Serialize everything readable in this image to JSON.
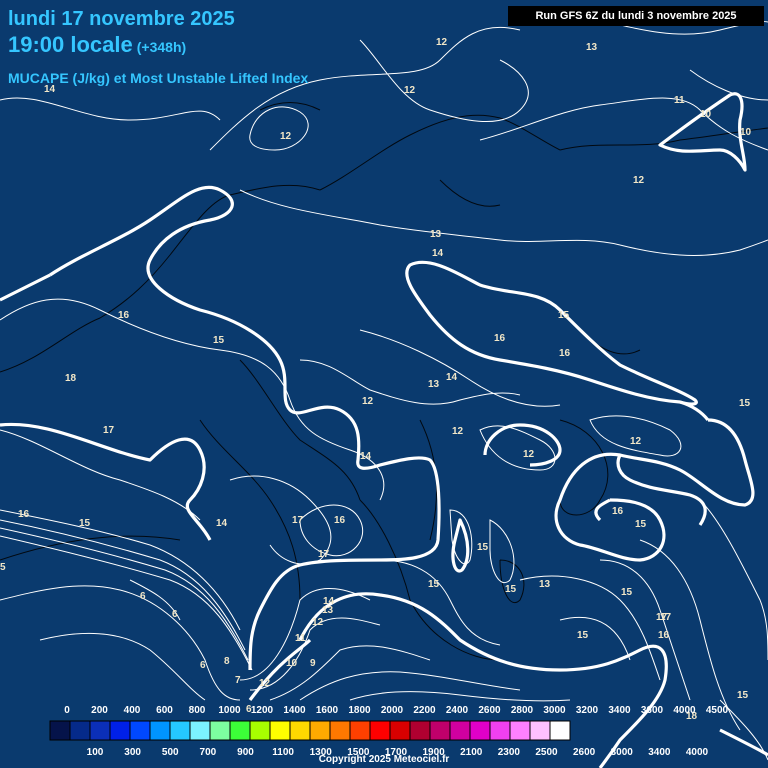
{
  "header": {
    "date": "lundi 17 novembre 2025",
    "time": "19:00 locale",
    "offset": "(+348h)",
    "parameter": "MUCAPE (J/kg) et Most Unstable Lifted Index",
    "run": "Run GFS 6Z du lundi 3 novembre 2025"
  },
  "legend": {
    "top_labels": [
      "0",
      "200",
      "400",
      "600",
      "800",
      "1000",
      "1200",
      "1400",
      "1600",
      "1800",
      "2000",
      "2200",
      "2400",
      "2600",
      "2800",
      "3000",
      "3200",
      "3400",
      "3600",
      "4000",
      "4500"
    ],
    "bottom_labels": [
      "100",
      "300",
      "500",
      "700",
      "900",
      "1100",
      "1300",
      "1500",
      "1700",
      "1900",
      "2100",
      "2300",
      "2500",
      "2600",
      "3000",
      "3400",
      "4000"
    ],
    "colors": [
      "#05134a",
      "#052a8a",
      "#0b2fb8",
      "#0020e8",
      "#0048ff",
      "#0094ff",
      "#25c8ff",
      "#7cf3ff",
      "#7dffa0",
      "#3cff38",
      "#a8ff00",
      "#ffff00",
      "#ffd800",
      "#ffaa00",
      "#ff7800",
      "#ff4000",
      "#ff0000",
      "#d80000",
      "#b00030",
      "#c0006a",
      "#d000a0",
      "#e000c8",
      "#f040f0",
      "#ff80ff",
      "#ffc0ff",
      "#ffffff"
    ]
  },
  "contour_labels": [
    {
      "v": "12"
    },
    {
      "v": "13"
    },
    {
      "v": "11"
    },
    {
      "v": "10"
    },
    {
      "v": "10"
    },
    {
      "v": "14"
    },
    {
      "v": "12"
    },
    {
      "v": "12"
    },
    {
      "v": "12"
    },
    {
      "v": "13"
    },
    {
      "v": "14"
    },
    {
      "v": "16"
    },
    {
      "v": "15"
    },
    {
      "v": "16"
    },
    {
      "v": "16"
    },
    {
      "v": "15"
    },
    {
      "v": "18"
    },
    {
      "v": "13"
    },
    {
      "v": "14"
    },
    {
      "v": "12"
    },
    {
      "v": "17"
    },
    {
      "v": "12"
    },
    {
      "v": "12"
    },
    {
      "v": "12"
    },
    {
      "v": "15"
    },
    {
      "v": "14"
    },
    {
      "v": "16"
    },
    {
      "v": "15"
    },
    {
      "v": "14"
    },
    {
      "v": "17"
    },
    {
      "v": "16"
    },
    {
      "v": "16"
    },
    {
      "v": "15"
    },
    {
      "v": "15"
    },
    {
      "v": "17"
    },
    {
      "v": "15"
    },
    {
      "v": "15"
    },
    {
      "v": "13"
    },
    {
      "v": "15"
    },
    {
      "v": "17"
    },
    {
      "v": "14"
    },
    {
      "v": "13"
    },
    {
      "v": "12"
    },
    {
      "v": "15"
    },
    {
      "v": "16"
    },
    {
      "v": "11"
    },
    {
      "v": "6"
    },
    {
      "v": "6"
    },
    {
      "v": "6"
    },
    {
      "v": "8"
    },
    {
      "v": "10"
    },
    {
      "v": "9"
    },
    {
      "v": "12"
    },
    {
      "v": "7"
    },
    {
      "v": "6"
    },
    {
      "v": "17"
    },
    {
      "v": "18"
    },
    {
      "v": "15"
    },
    {
      "v": "5"
    }
  ],
  "copyright": "Copyright 2025 Meteociel.fr"
}
